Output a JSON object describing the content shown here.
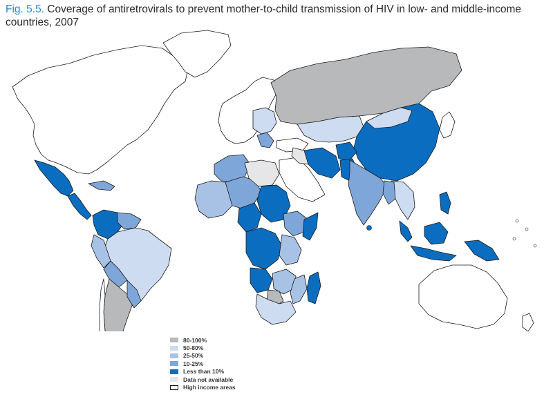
{
  "title": {
    "figure_label": "Fig. 5.5.",
    "text": " Coverage of antiretrovirals to prevent mother-to-child transmission of HIV in low- and middle-income countries, 2007"
  },
  "legend": [
    {
      "label": "80-100%",
      "color": "#b8b9bb"
    },
    {
      "label": "50-80%",
      "color": "#cddcf0"
    },
    {
      "label": "25-50%",
      "color": "#a8c2e6"
    },
    {
      "label": "10-25%",
      "color": "#7fa6d8"
    },
    {
      "label": "Less than 10%",
      "color": "#0a6dc0"
    },
    {
      "label": "Data not available",
      "color": "#e6e6e8"
    },
    {
      "label": "High income areas",
      "color": "#ffffff"
    }
  ],
  "colors": {
    "outline": "#1a1a1a",
    "title_accent": "#1f8ccf"
  }
}
